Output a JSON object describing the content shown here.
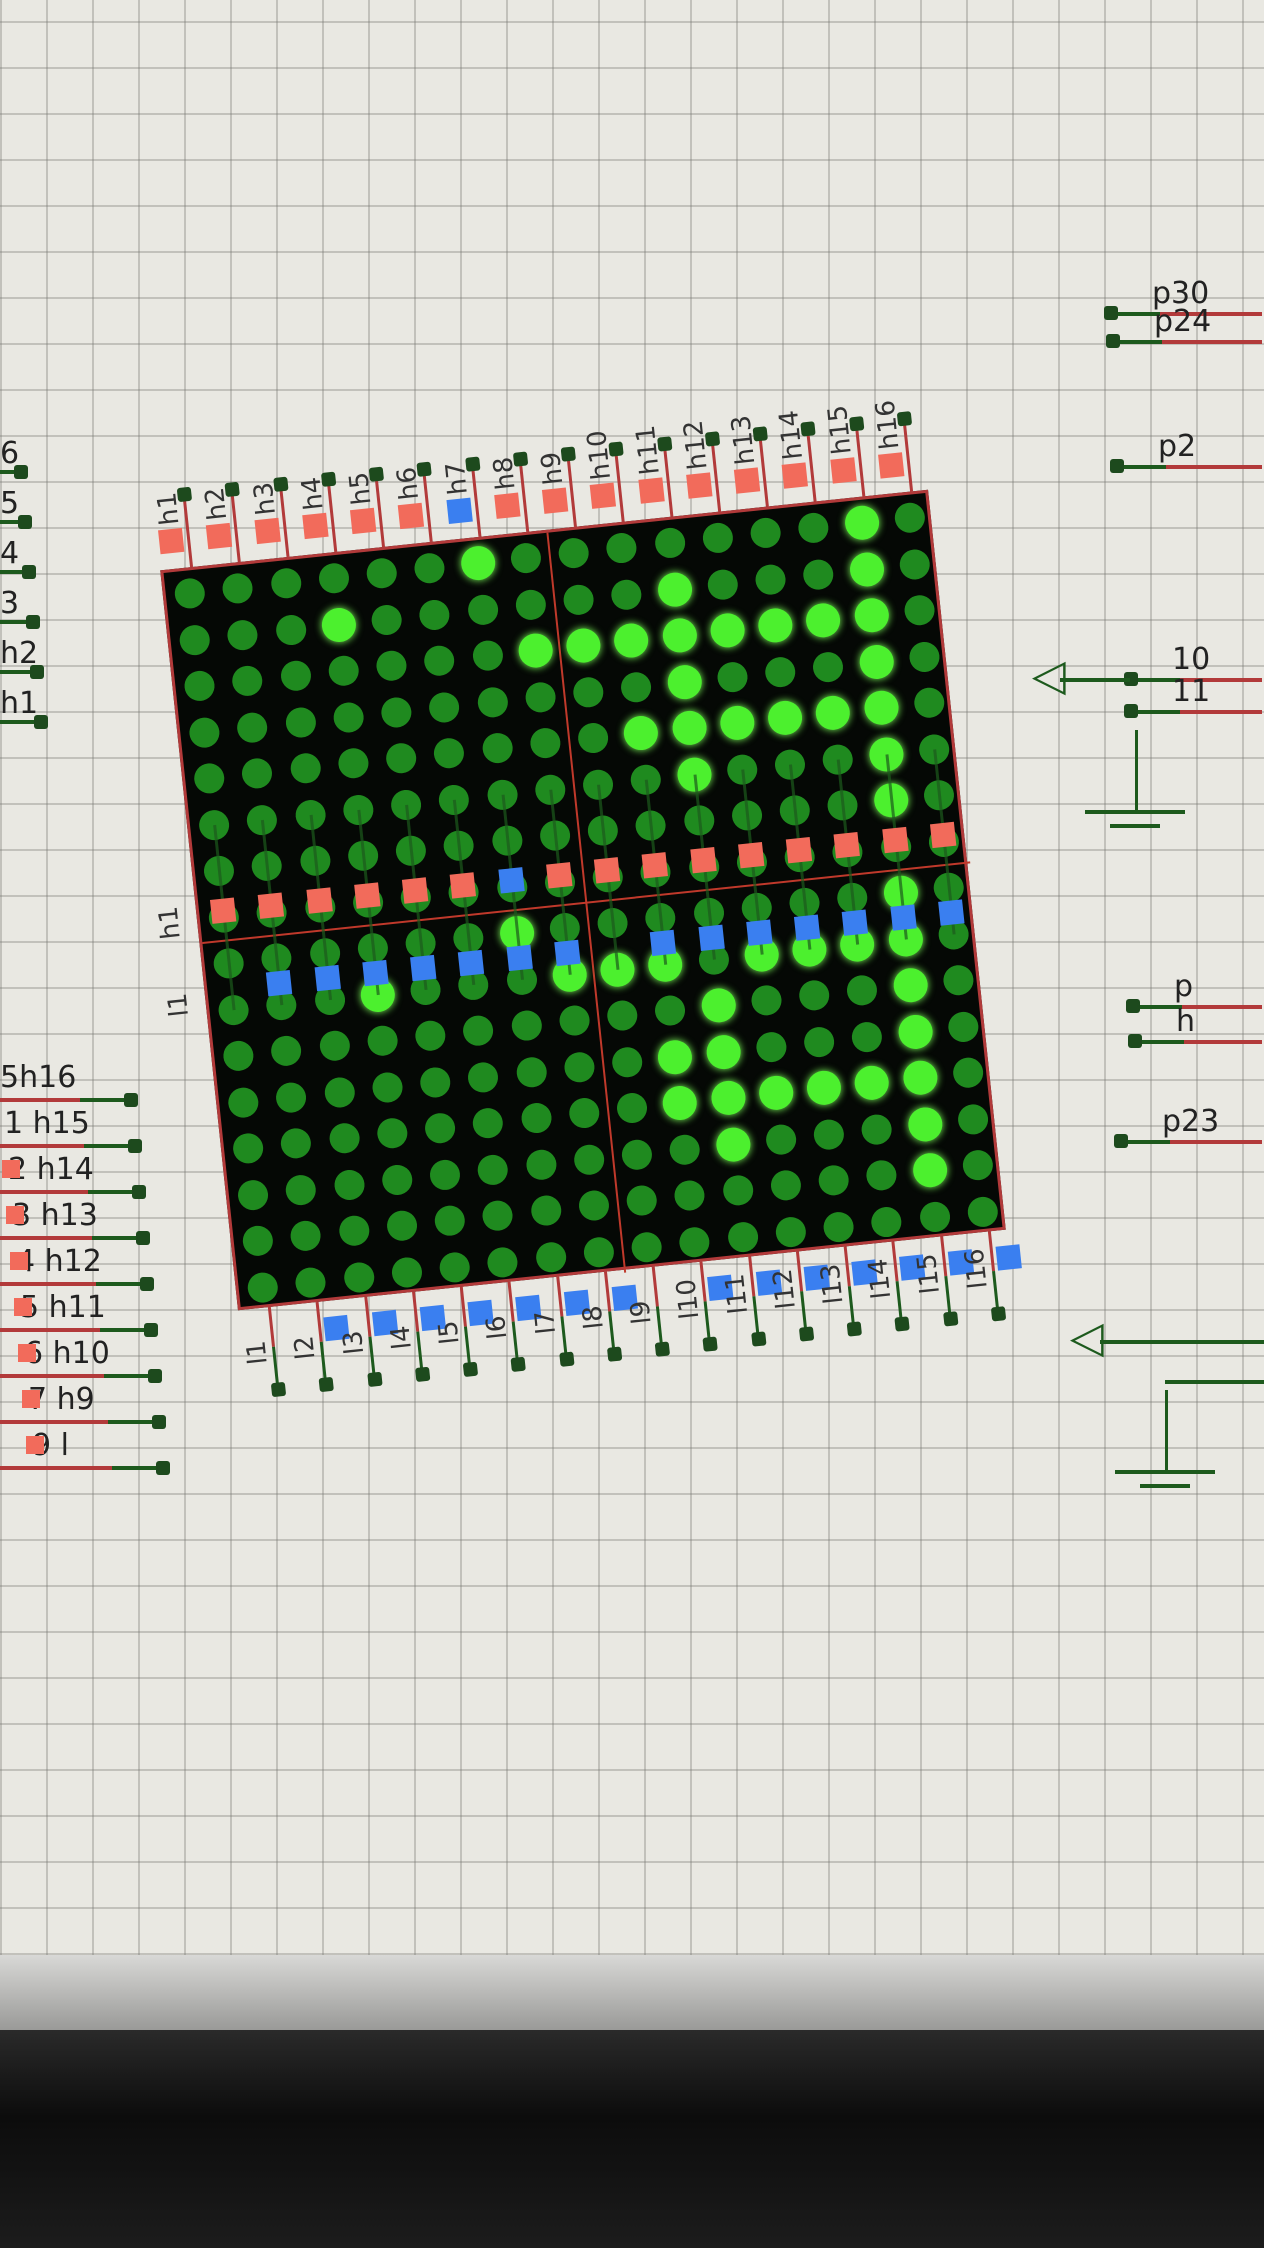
{
  "colors": {
    "pin_high": "#f26b5b",
    "pin_low": "#3a7ff0",
    "led_on": "#4cf02e",
    "led_off": "#1f8a1f",
    "wire": "#1d5a1d",
    "wire_red": "#b23a3a",
    "grid": "#e9e8e2"
  },
  "top_pins": {
    "labels": [
      "h1",
      "h2",
      "h3",
      "h4",
      "h5",
      "h6",
      "h7",
      "h8",
      "h9",
      "h10",
      "h11",
      "h12",
      "h13",
      "h14",
      "h15",
      "h16"
    ],
    "states": [
      "red",
      "red",
      "red",
      "red",
      "red",
      "red",
      "blue",
      "red",
      "red",
      "red",
      "red",
      "red",
      "red",
      "red",
      "red",
      "red"
    ]
  },
  "bottom_pins": {
    "labels": [
      "l1",
      "l2",
      "l3",
      "l4",
      "l5",
      "l6",
      "l7",
      "l8",
      "l9",
      "l10",
      "l11",
      "l12",
      "l13",
      "l14",
      "l15",
      "l16"
    ],
    "states": [
      "none",
      "blue",
      "blue",
      "blue",
      "blue",
      "blue",
      "blue",
      "blue",
      "none",
      "blue",
      "blue",
      "blue",
      "blue",
      "blue",
      "blue",
      "blue"
    ]
  },
  "middle_rows": {
    "h_label": "h1",
    "l_label": "l1",
    "red_states": [
      "red",
      "red",
      "red",
      "red",
      "red",
      "red",
      "blue",
      "red",
      "red",
      "red",
      "red",
      "red",
      "red",
      "red",
      "red",
      "red"
    ],
    "blue_states": [
      "none",
      "blue",
      "blue",
      "blue",
      "blue",
      "blue",
      "blue",
      "blue",
      "none",
      "blue",
      "blue",
      "blue",
      "blue",
      "blue",
      "blue",
      "blue"
    ]
  },
  "led_rows": [
    "0000002000000020",
    "0002000000200020",
    "0000000222222220",
    "0000000000200020",
    "0000000002222220",
    "0000000000200020",
    "0000000000000020",
    "0000000000000000",
    "0000002000000020",
    "0002000222022220",
    "0000000000200020",
    "0000000002200020",
    "0000000002222220",
    "0000000000200020",
    "0000000000000020",
    "0000000000000000"
  ],
  "left_labels_top": [
    "6",
    "5",
    "4",
    "3",
    "h2",
    "h1"
  ],
  "left_labels_bottom": [
    "5h16",
    "1 h15",
    "2 h14",
    "3 h13",
    "4 h12",
    "5 h11",
    "6 h10",
    "7 h9",
    "9 l"
  ],
  "right_labels": [
    "p30",
    "p24",
    "p2",
    "10",
    "11",
    "p",
    "h",
    "p23"
  ]
}
